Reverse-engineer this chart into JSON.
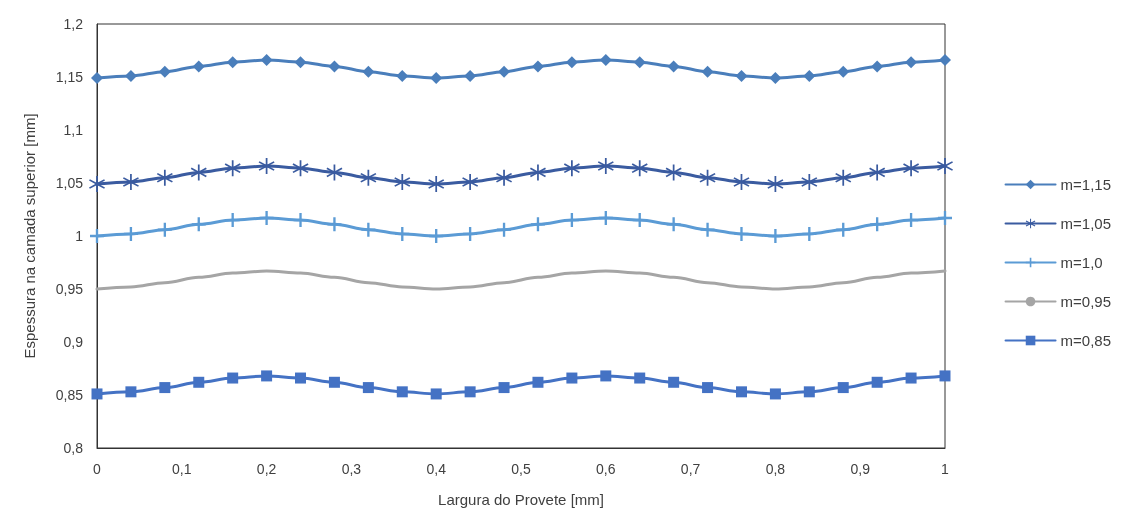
{
  "chart_data": {
    "type": "line",
    "xlabel": "Largura do Provete [mm]",
    "ylabel": "Espessura na camada superior [mm]",
    "x": [
      0,
      0.04,
      0.08,
      0.12,
      0.16,
      0.2,
      0.24,
      0.28,
      0.32,
      0.36,
      0.4,
      0.44,
      0.48,
      0.52,
      0.56,
      0.6,
      0.64,
      0.68,
      0.72,
      0.76,
      0.8,
      0.84,
      0.88,
      0.92,
      0.96,
      1
    ],
    "series": [
      {
        "name": "m=1,15",
        "color": "#4a7ebb",
        "marker": "diamond",
        "values": [
          1.149,
          1.151,
          1.155,
          1.16,
          1.164,
          1.166,
          1.164,
          1.16,
          1.155,
          1.151,
          1.149,
          1.151,
          1.155,
          1.16,
          1.164,
          1.166,
          1.164,
          1.16,
          1.155,
          1.151,
          1.149,
          1.151,
          1.155,
          1.16,
          1.164,
          1.166
        ]
      },
      {
        "name": "m=1,05",
        "color": "#3a5ba0",
        "marker": "star",
        "values": [
          1.049,
          1.051,
          1.055,
          1.06,
          1.064,
          1.066,
          1.064,
          1.06,
          1.055,
          1.051,
          1.049,
          1.051,
          1.055,
          1.06,
          1.064,
          1.066,
          1.064,
          1.06,
          1.055,
          1.051,
          1.049,
          1.051,
          1.055,
          1.06,
          1.064,
          1.066
        ]
      },
      {
        "name": "m=1,0",
        "color": "#5b9bd5",
        "marker": "cross",
        "values": [
          1.0,
          1.002,
          1.006,
          1.011,
          1.015,
          1.017,
          1.015,
          1.011,
          1.006,
          1.002,
          1.0,
          1.002,
          1.006,
          1.011,
          1.015,
          1.017,
          1.015,
          1.011,
          1.006,
          1.002,
          1.0,
          1.002,
          1.006,
          1.011,
          1.015,
          1.017
        ]
      },
      {
        "name": "m=0,95",
        "color": "#a5a5a5",
        "marker": "none",
        "values": [
          0.95,
          0.952,
          0.956,
          0.961,
          0.965,
          0.967,
          0.965,
          0.961,
          0.956,
          0.952,
          0.95,
          0.952,
          0.956,
          0.961,
          0.965,
          0.967,
          0.965,
          0.961,
          0.956,
          0.952,
          0.95,
          0.952,
          0.956,
          0.961,
          0.965,
          0.967
        ]
      },
      {
        "name": "m=0,85",
        "color": "#4472c4",
        "marker": "square",
        "values": [
          0.851,
          0.853,
          0.857,
          0.862,
          0.866,
          0.868,
          0.866,
          0.862,
          0.857,
          0.853,
          0.851,
          0.853,
          0.857,
          0.862,
          0.866,
          0.868,
          0.866,
          0.862,
          0.857,
          0.853,
          0.851,
          0.853,
          0.857,
          0.862,
          0.866,
          0.868
        ]
      }
    ],
    "xlim": [
      0,
      1
    ],
    "xticks": [
      {
        "value": 0,
        "label": "0"
      },
      {
        "value": 0.1,
        "label": "0,1"
      },
      {
        "value": 0.2,
        "label": "0,2"
      },
      {
        "value": 0.3,
        "label": "0,3"
      },
      {
        "value": 0.4,
        "label": "0,4"
      },
      {
        "value": 0.5,
        "label": "0,5"
      },
      {
        "value": 0.6,
        "label": "0,6"
      },
      {
        "value": 0.7,
        "label": "0,7"
      },
      {
        "value": 0.8,
        "label": "0,8"
      },
      {
        "value": 0.9,
        "label": "0,9"
      },
      {
        "value": 1,
        "label": "1"
      }
    ],
    "ylim": [
      0.8,
      1.2
    ],
    "yticks": [
      {
        "value": 0.8,
        "label": "0,8"
      },
      {
        "value": 0.85,
        "label": "0,85"
      },
      {
        "value": 0.9,
        "label": "0,9"
      },
      {
        "value": 0.95,
        "label": "0,95"
      },
      {
        "value": 1,
        "label": "1"
      },
      {
        "value": 1.05,
        "label": "1,05"
      },
      {
        "value": 1.1,
        "label": "1,1"
      },
      {
        "value": 1.15,
        "label": "1,15"
      },
      {
        "value": 1.2,
        "label": "1,2"
      }
    ],
    "grid": false,
    "legend": "right",
    "line_style": "solid"
  }
}
